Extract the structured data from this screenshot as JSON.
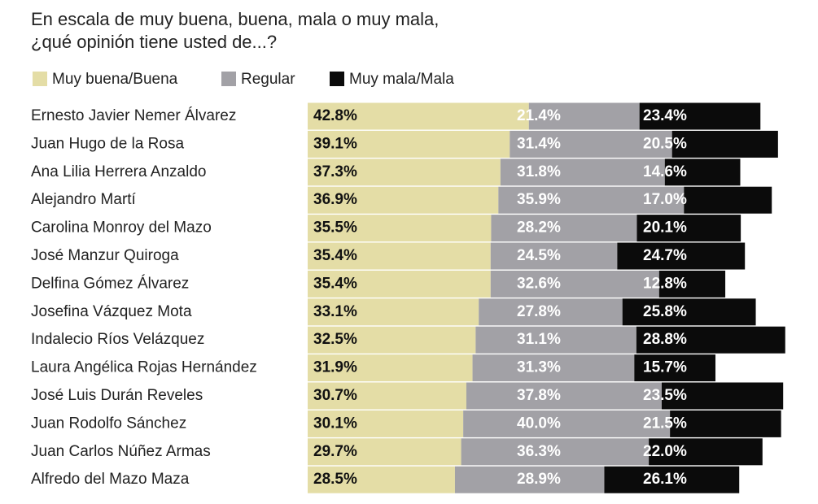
{
  "chart_data": {
    "type": "stacked-bar",
    "orientation": "horizontal",
    "title": "En escala de muy buena, buena, mala o muy mala, ¿qué opinión tiene usted de...?",
    "categories": [
      "Ernesto Javier Nemer Álvarez",
      "Juan Hugo de la Rosa",
      "Ana Lilia Herrera Anzaldo",
      "Alejandro Martí",
      "Carolina Monroy del Mazo",
      "José Manzur Quiroga",
      "Delfina Gómez Álvarez",
      "Josefina Vázquez Mota",
      "Indalecio Ríos Velázquez",
      "Laura Angélica Rojas Hernández",
      "José Luis Durán Reveles",
      "Juan Rodolfo Sánchez",
      "Juan Carlos Núñez Armas",
      "Alfredo del Mazo Maza"
    ],
    "series": [
      {
        "name": "Muy buena/Buena",
        "color": "#e4dda6",
        "label_color": "#111111",
        "values": [
          42.8,
          39.1,
          37.3,
          36.9,
          35.5,
          35.4,
          35.4,
          33.1,
          32.5,
          31.9,
          30.7,
          30.1,
          29.7,
          28.5
        ],
        "value_labels": [
          "42.8%",
          "39.1%",
          "37.3%",
          "36.9%",
          "35.5%",
          "35.4%",
          "35.4%",
          "33.1%",
          "32.5%",
          "31.9%",
          "30.7%",
          "30.1%",
          "29.7%",
          "28.5%"
        ]
      },
      {
        "name": "Regular",
        "color": "#a2a1a6",
        "label_color": "#ffffff",
        "values": [
          21.4,
          31.4,
          31.8,
          35.9,
          28.2,
          24.5,
          32.6,
          27.8,
          31.1,
          31.3,
          37.8,
          40.0,
          36.3,
          28.9
        ],
        "value_labels": [
          "21.4%",
          "31.4%",
          "31.8%",
          "35.9%",
          "28.2%",
          "24.5%",
          "32.6%",
          "27.8%",
          "31.1%",
          "31.3%",
          "37.8%",
          "40.0%",
          "36.3%",
          "28.9%"
        ]
      },
      {
        "name": "Muy mala/Mala",
        "color": "#0b0b0b",
        "label_color": "#ffffff",
        "values": [
          23.4,
          20.5,
          14.6,
          17.0,
          20.1,
          24.7,
          12.8,
          25.8,
          28.8,
          15.7,
          23.5,
          21.5,
          22.0,
          26.1
        ],
        "value_labels": [
          "23.4%",
          "20.5%",
          "14.6%",
          "17.0%",
          "20.1%",
          "24.7%",
          "12.8%",
          "25.8%",
          "28.8%",
          "15.7%",
          "23.5%",
          "21.5%",
          "22.0%",
          "26.1%"
        ]
      }
    ]
  }
}
